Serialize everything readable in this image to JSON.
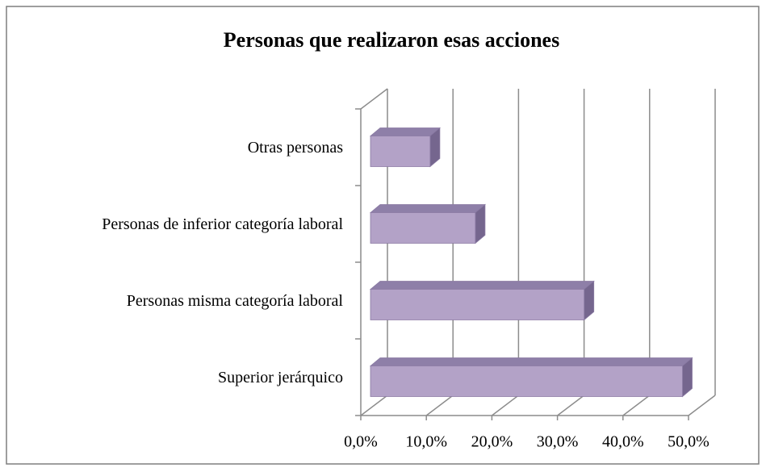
{
  "chart_data": {
    "type": "bar3d_horizontal",
    "title": "Personas que realizaron esas acciones",
    "categories": [
      "Otras personas",
      "Personas de inferior categoría laboral",
      "Personas misma categoría laboral",
      "Superior jerárquico"
    ],
    "values": [
      9.1,
      16.0,
      32.6,
      47.6
    ],
    "color": "#b3a2c7",
    "xlim": [
      0,
      50
    ],
    "xticks": [
      {
        "value": 0,
        "label": "0,0%"
      },
      {
        "value": 10,
        "label": "10,0%"
      },
      {
        "value": 20,
        "label": "20,0%"
      },
      {
        "value": 30,
        "label": "30,0%"
      },
      {
        "value": 40,
        "label": "40,0%"
      },
      {
        "value": 50,
        "label": "50,0%"
      }
    ],
    "grid": true
  }
}
